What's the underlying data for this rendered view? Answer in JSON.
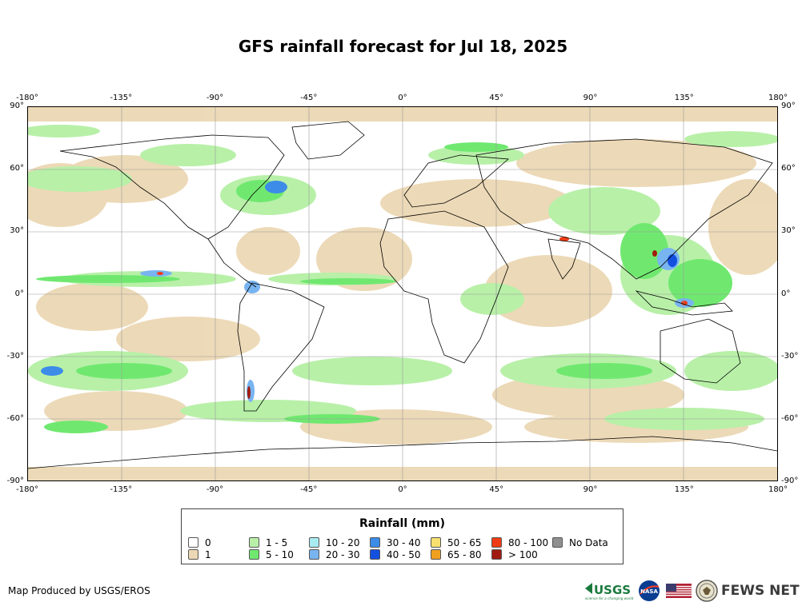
{
  "title": "GFS rainfall forecast for Jul 18, 2025",
  "axes": {
    "lon_ticks": [
      "-180°",
      "-135°",
      "-90°",
      "-45°",
      "0°",
      "45°",
      "90°",
      "135°",
      "180°"
    ],
    "lat_ticks": [
      "90°",
      "60°",
      "30°",
      "0°",
      "-30°",
      "-60°",
      "-90°"
    ]
  },
  "legend": {
    "title": "Rainfall (mm)",
    "items": [
      {
        "label": "0",
        "color": "#ffffff"
      },
      {
        "label": "1",
        "color": "#ecd8b4"
      },
      {
        "label": "1 - 5",
        "color": "#b8f0a8"
      },
      {
        "label": "5 - 10",
        "color": "#70e870"
      },
      {
        "label": "10 - 20",
        "color": "#a8ecf0"
      },
      {
        "label": "20 - 30",
        "color": "#78b4f0"
      },
      {
        "label": "30 - 40",
        "color": "#3c8ce8"
      },
      {
        "label": "40 - 50",
        "color": "#1450e0"
      },
      {
        "label": "50 - 65",
        "color": "#f8e070"
      },
      {
        "label": "65 - 80",
        "color": "#f0a020"
      },
      {
        "label": "80 - 100",
        "color": "#f03c14"
      },
      {
        "label": "> 100",
        "color": "#a01c10"
      },
      {
        "label": "No Data",
        "color": "#909090"
      }
    ]
  },
  "credit": "Map Produced by USGS/EROS",
  "logos": {
    "usgs": "USGS",
    "usgs_tagline": "science for a changing world",
    "nasa": "NASA",
    "fews": "FEWS NET",
    "flag_icon": "us-flag-icon",
    "seal_icon": "state-department-seal-icon"
  }
}
